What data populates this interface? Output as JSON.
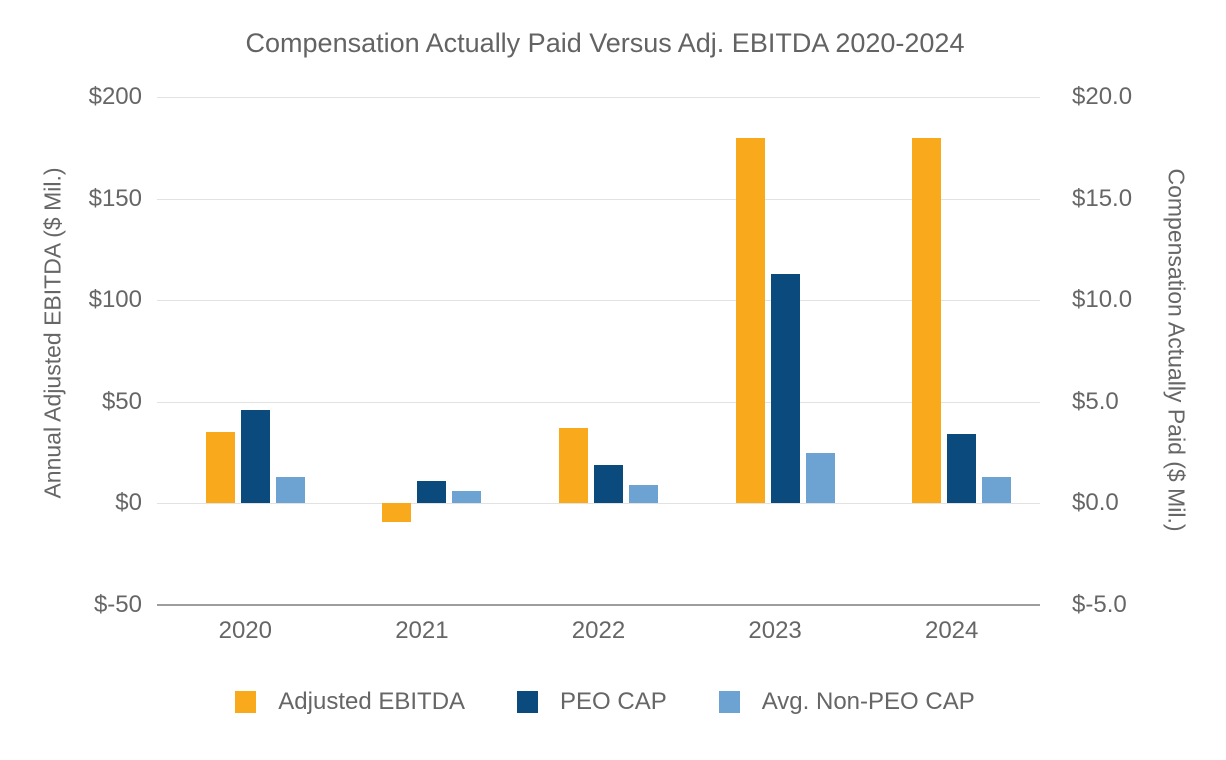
{
  "title": "Compensation Actually Paid Versus Adj. EBITDA 2020-2024",
  "chart_data": {
    "type": "bar",
    "title": "Compensation Actually Paid Versus Adj. EBITDA 2020-2024",
    "categories": [
      "2020",
      "2021",
      "2022",
      "2023",
      "2024"
    ],
    "series": [
      {
        "name": "Adjusted EBITDA",
        "axis": "left",
        "color": "#F9A91C",
        "values": [
          35,
          -9,
          37,
          180,
          180
        ]
      },
      {
        "name": "PEO CAP",
        "axis": "right",
        "color": "#0B4A7C",
        "values": [
          4.6,
          1.1,
          1.9,
          11.3,
          3.4
        ]
      },
      {
        "name": "Avg. Non-PEO CAP",
        "axis": "right",
        "color": "#6CA3D2",
        "values": [
          1.3,
          0.6,
          0.9,
          2.5,
          1.3
        ]
      }
    ],
    "left_axis": {
      "label": "Annual Adjusted EBITDA ($ Mil.)",
      "ticks": [
        "$200",
        "$150",
        "$100",
        "$50",
        "$0",
        "$-50"
      ],
      "min": -50,
      "max": 200
    },
    "right_axis": {
      "label": "Compensation Actually Paid ($ Mil.)",
      "ticks": [
        "$20.0",
        "$15.0",
        "$10.0",
        "$5.0",
        "$0.0",
        "$-5.0"
      ],
      "min": -5,
      "max": 20
    },
    "grid": true,
    "legend_position": "bottom",
    "legend": [
      "Adjusted EBITDA",
      "PEO CAP",
      "Avg. Non-PEO CAP"
    ]
  }
}
